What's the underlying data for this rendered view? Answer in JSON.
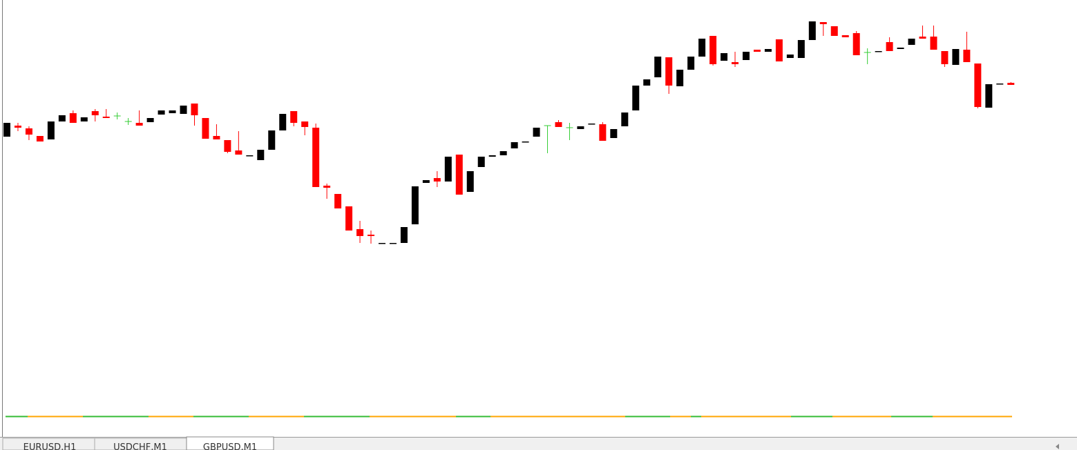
{
  "chart_data": {
    "type": "candlestick",
    "ylim": [
      0,
      650
    ],
    "up_color": "#000000",
    "down_color": "#ff0000",
    "doji_color": "#33cc33",
    "open": [
      452,
      468,
      464,
      453,
      448,
      474,
      486,
      474,
      489,
      481,
      482,
      474,
      472,
      473,
      484,
      486,
      485,
      500,
      479,
      453,
      447,
      432,
      424,
      418,
      433,
      461,
      489,
      474,
      465,
      381,
      369,
      351,
      318,
      310,
      297,
      297,
      298,
      325,
      385,
      392,
      387,
      426,
      372,
      408,
      423,
      425,
      435,
      444,
      452,
      468,
      473,
      465,
      463,
      470,
      470,
      450,
      467,
      490,
      526,
      538,
      567,
      525,
      549,
      568,
      598,
      562,
      560,
      563,
      578,
      575,
      593,
      566,
      566,
      592,
      618,
      612,
      599,
      602,
      574,
      575,
      589,
      579,
      585,
      597,
      597,
      576,
      556,
      578,
      558,
      494,
      528,
      530
    ],
    "high": [
      472,
      472,
      467,
      453,
      474,
      483,
      490,
      480,
      492,
      492,
      487,
      479,
      490,
      479,
      490,
      490,
      497,
      500,
      479,
      470,
      447,
      460,
      425,
      433,
      461,
      485,
      489,
      474,
      471,
      384,
      369,
      351,
      330,
      316,
      298,
      298,
      321,
      380,
      389,
      402,
      423,
      426,
      402,
      423,
      425,
      431,
      444,
      445,
      465,
      468,
      476,
      472,
      467,
      471,
      473,
      463,
      487,
      526,
      535,
      568,
      567,
      549,
      568,
      594,
      598,
      573,
      575,
      575,
      578,
      579,
      593,
      571,
      592,
      619,
      618,
      612,
      599,
      605,
      580,
      576,
      596,
      581,
      594,
      613,
      613,
      576,
      579,
      604,
      558,
      528,
      529,
      531
    ],
    "low": [
      452,
      460,
      447,
      445,
      448,
      474,
      472,
      474,
      474,
      479,
      477,
      469,
      468,
      473,
      484,
      486,
      485,
      468,
      449,
      448,
      428,
      426,
      424,
      418,
      433,
      461,
      467,
      454,
      379,
      362,
      348,
      316,
      298,
      297,
      297,
      297,
      298,
      325,
      385,
      379,
      387,
      368,
      372,
      408,
      423,
      425,
      435,
      444,
      452,
      428,
      466,
      447,
      463,
      470,
      446,
      450,
      467,
      490,
      526,
      538,
      514,
      525,
      549,
      568,
      555,
      562,
      553,
      563,
      575,
      575,
      561,
      566,
      566,
      592,
      598,
      598,
      596,
      570,
      557,
      575,
      576,
      579,
      585,
      594,
      578,
      553,
      556,
      560,
      493,
      494,
      528,
      527
    ],
    "close": [
      472,
      465,
      455,
      445,
      474,
      483,
      472,
      480,
      483,
      479,
      482,
      474,
      468,
      479,
      490,
      490,
      497,
      483,
      449,
      448,
      430,
      426,
      425,
      433,
      461,
      485,
      472,
      466,
      379,
      378,
      348,
      316,
      308,
      308,
      298,
      298,
      321,
      380,
      389,
      387,
      423,
      368,
      402,
      423,
      425,
      431,
      444,
      445,
      465,
      468,
      466,
      465,
      467,
      471,
      446,
      463,
      487,
      526,
      535,
      568,
      526,
      549,
      568,
      594,
      557,
      573,
      557,
      575,
      575,
      579,
      561,
      571,
      592,
      619,
      615,
      598,
      596,
      570,
      574,
      576,
      576,
      581,
      594,
      594,
      578,
      557,
      579,
      560,
      495,
      528,
      529,
      527
    ]
  },
  "tabs": [
    "EURUSD,H1",
    "USDCHF,M1",
    "GBPUSD,M1"
  ]
}
